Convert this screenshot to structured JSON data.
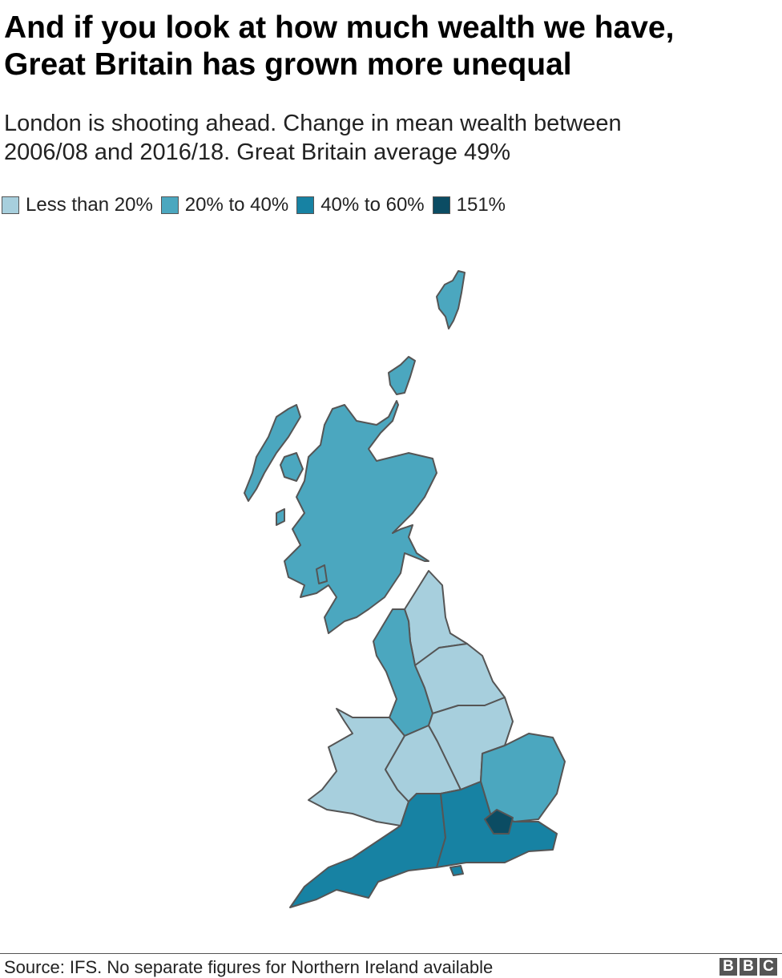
{
  "header": {
    "title": [
      "And if you look at how much wealth we have,",
      "Great Britain has grown more unequal"
    ],
    "subtitle": [
      "London is shooting ahead. Change in mean wealth between",
      "2006/08 and 2016/18. Great Britain average 49%"
    ]
  },
  "legend": [
    {
      "label": "Less than 20%",
      "color": "#a7cfdd"
    },
    {
      "label": "20% to 40%",
      "color": "#4ba7bf"
    },
    {
      "label": "40% to 60%",
      "color": "#1782a3"
    },
    {
      "label": "151%",
      "color": "#0b4c63"
    }
  ],
  "footer": {
    "source": "Source: IFS. No separate figures for Northern Ireland available",
    "logo": [
      "B",
      "B",
      "C"
    ]
  }
}
